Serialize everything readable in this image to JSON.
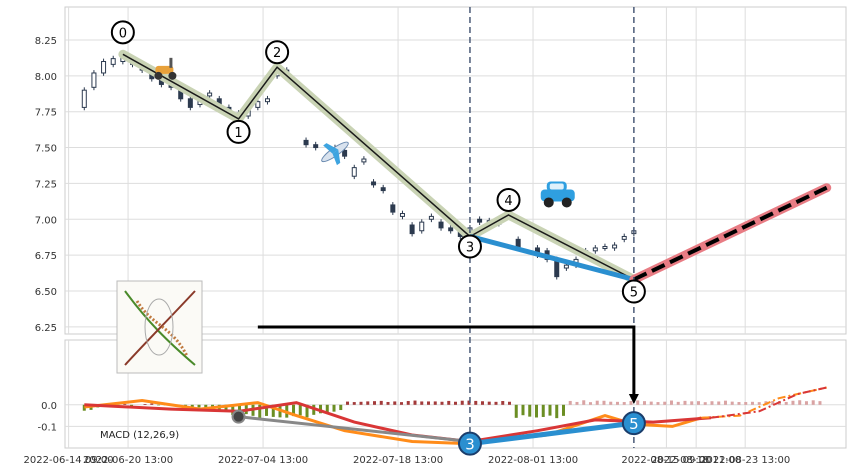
{
  "chart_data": [
    {
      "type": "candlestick",
      "panel": "price",
      "xlim": [
        "2022-06-14",
        "2022-09-03"
      ],
      "ylim": [
        6.2,
        8.48
      ],
      "yticks": [
        6.25,
        6.5,
        6.75,
        7.0,
        7.25,
        7.5,
        7.75,
        8.0,
        8.25
      ],
      "xticks": [
        "2022-06-14 09:00",
        "2022-06-20 13:00",
        "2022-07-04 13:00",
        "2022-07-18 13:00",
        "2022-08-01 13:00",
        "2022-08-15 09:00",
        "2022-08-18 11:00",
        "2022-08-23 13:00"
      ],
      "grid": true,
      "candles_close_approx": [
        [
          "2022-06-16",
          7.78,
          7.9
        ],
        [
          "2022-06-17",
          7.92,
          8.02
        ],
        [
          "2022-06-18",
          8.02,
          8.1
        ],
        [
          "2022-06-19",
          8.08,
          8.12
        ],
        [
          "2022-06-20",
          8.1,
          8.15
        ],
        [
          "2022-06-21",
          8.12,
          8.08
        ],
        [
          "2022-06-22",
          8.08,
          8.04
        ],
        [
          "2022-06-23",
          8.04,
          7.98
        ],
        [
          "2022-06-24",
          7.98,
          7.94
        ],
        [
          "2022-06-25",
          7.94,
          7.92
        ],
        [
          "2022-06-26",
          7.9,
          7.84
        ],
        [
          "2022-06-27",
          7.84,
          7.78
        ],
        [
          "2022-06-28",
          7.8,
          7.83
        ],
        [
          "2022-06-29",
          7.86,
          7.88
        ],
        [
          "2022-06-30",
          7.84,
          7.8
        ],
        [
          "2022-07-01",
          7.78,
          7.74
        ],
        [
          "2022-07-02",
          7.74,
          7.7
        ],
        [
          "2022-07-03",
          7.72,
          7.78
        ],
        [
          "2022-07-04",
          7.78,
          7.82
        ],
        [
          "2022-07-05",
          7.82,
          7.84
        ],
        [
          "2022-07-06",
          8.0,
          8.06
        ],
        [
          "2022-07-07",
          8.04,
          8.03
        ],
        [
          "2022-07-09",
          7.55,
          7.52
        ],
        [
          "2022-07-10",
          7.52,
          7.5
        ],
        [
          "2022-07-12",
          7.5,
          7.46
        ],
        [
          "2022-07-13",
          7.48,
          7.44
        ],
        [
          "2022-07-14",
          7.3,
          7.36
        ],
        [
          "2022-07-15",
          7.4,
          7.42
        ],
        [
          "2022-07-16",
          7.26,
          7.24
        ],
        [
          "2022-07-17",
          7.22,
          7.2
        ],
        [
          "2022-07-18",
          7.1,
          7.05
        ],
        [
          "2022-07-19",
          7.02,
          7.04
        ],
        [
          "2022-07-20",
          6.96,
          6.9
        ],
        [
          "2022-07-21",
          6.92,
          6.98
        ],
        [
          "2022-07-22",
          7.0,
          7.02
        ],
        [
          "2022-07-23",
          6.98,
          6.94
        ],
        [
          "2022-07-24",
          6.94,
          6.92
        ],
        [
          "2022-07-25",
          6.92,
          6.88
        ],
        [
          "2022-07-26",
          6.9,
          6.94
        ],
        [
          "2022-07-27",
          7.0,
          6.98
        ],
        [
          "2022-07-28",
          6.98,
          6.99
        ],
        [
          "2022-07-29",
          6.98,
          6.97
        ],
        [
          "2022-07-31",
          6.86,
          6.8
        ],
        [
          "2022-08-02",
          6.8,
          6.75
        ],
        [
          "2022-08-03",
          6.78,
          6.72
        ],
        [
          "2022-08-04",
          6.72,
          6.6
        ],
        [
          "2022-08-05",
          6.66,
          6.68
        ],
        [
          "2022-08-06",
          6.68,
          6.72
        ],
        [
          "2022-08-07",
          6.74,
          6.78
        ],
        [
          "2022-08-08",
          6.78,
          6.8
        ],
        [
          "2022-08-09",
          6.8,
          6.81
        ],
        [
          "2022-08-10",
          6.8,
          6.82
        ],
        [
          "2022-08-11",
          6.86,
          6.88
        ],
        [
          "2022-08-12",
          6.9,
          6.92
        ]
      ],
      "wave_points": [
        {
          "label": "0",
          "date": "2022-06-20",
          "y": 8.15
        },
        {
          "label": "1",
          "date": "2022-07-02",
          "y": 7.7
        },
        {
          "label": "2",
          "date": "2022-07-06",
          "y": 8.06
        },
        {
          "label": "3",
          "date": "2022-07-26",
          "y": 6.88
        },
        {
          "label": "4",
          "date": "2022-07-30",
          "y": 7.03
        },
        {
          "label": "5",
          "date": "2022-08-12",
          "y": 6.58
        }
      ],
      "vlines": [
        "2022-07-26",
        "2022-08-12"
      ],
      "trend_3_5": [
        [
          "2022-07-26",
          6.88
        ],
        [
          "2022-08-12",
          6.58
        ]
      ],
      "projection": [
        [
          "2022-08-12",
          6.58
        ],
        [
          "2022-09-01",
          7.22
        ]
      ]
    },
    {
      "type": "macd",
      "panel": "indicator",
      "label": "MACD (12,26,9)",
      "ylim": [
        -0.2,
        0.3
      ],
      "yticks": [
        -0.1,
        0.0
      ],
      "points": [
        {
          "label": "3",
          "date": "2022-07-26",
          "y": -0.18
        },
        {
          "label": "5",
          "date": "2022-08-12",
          "y": -0.085
        }
      ]
    }
  ],
  "icons": [
    "scooter-icon",
    "airplane-icon",
    "car-icon",
    "diagram-thumbnail"
  ],
  "colors": {
    "wave_line": "#1a1a1a",
    "wave_halo": "#c9d3b4",
    "trend_blue": "#2a8fd0",
    "projection_red": "#e87c84",
    "candle_dark": "#2c3a4f",
    "histogram_pos": "#a33a3a",
    "histogram_neg": "#6b8e23",
    "macd_orange": "#ff8c1a",
    "macd_red": "#d93636"
  }
}
